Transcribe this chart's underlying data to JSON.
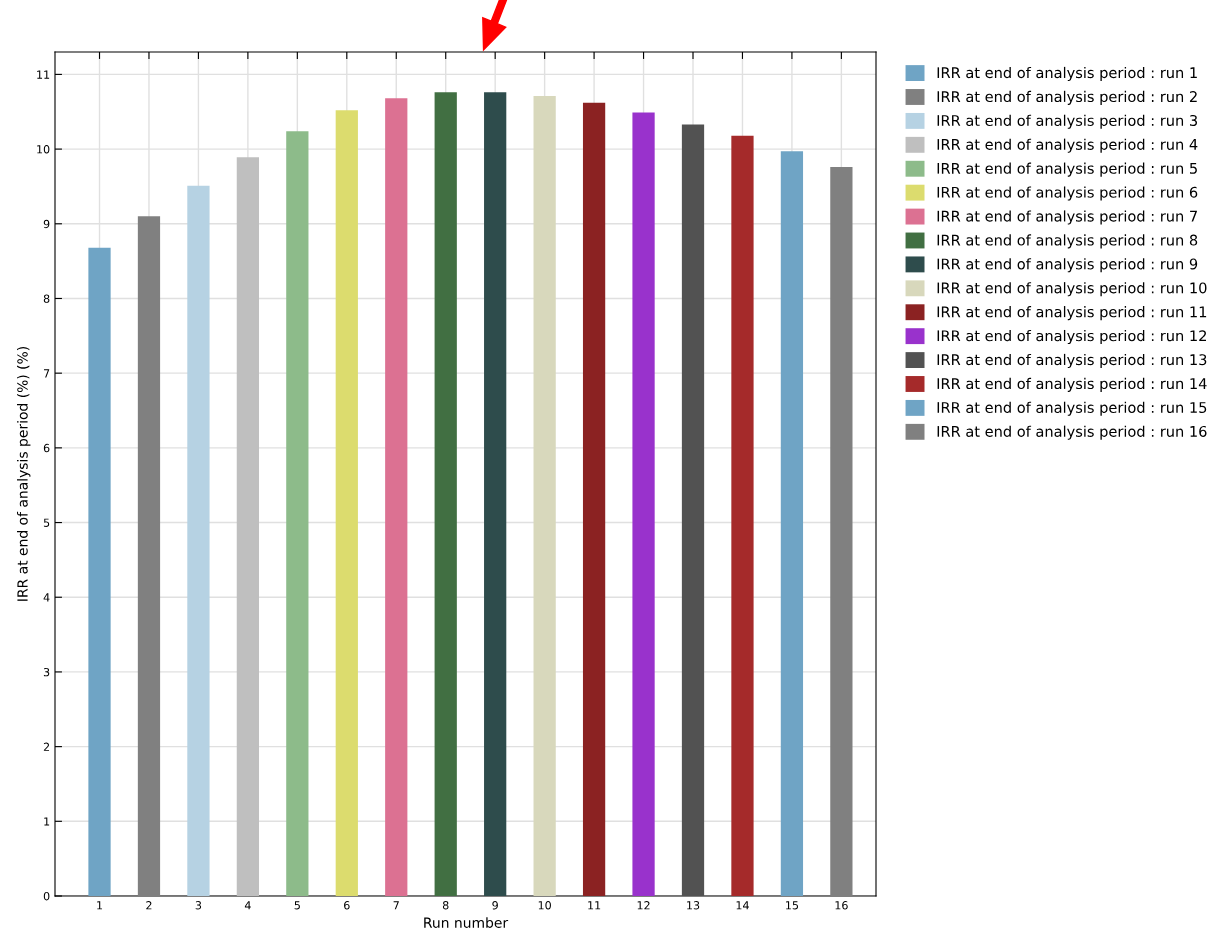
{
  "chart_data": {
    "type": "bar",
    "xlabel": "Run number",
    "ylabel": "IRR at end of analysis period (%) (%)",
    "categories": [
      "1",
      "2",
      "3",
      "4",
      "5",
      "6",
      "7",
      "8",
      "9",
      "10",
      "11",
      "12",
      "13",
      "14",
      "15",
      "16"
    ],
    "series": [
      {
        "name": "IRR at end of analysis period : run 1",
        "color": "#6fa4c5",
        "values": [
          8.68,
          null,
          null,
          null,
          null,
          null,
          null,
          null,
          null,
          null,
          null,
          null,
          null,
          null,
          null,
          null
        ]
      },
      {
        "name": "IRR at end of analysis period : run 2",
        "color": "#808080",
        "values": [
          null,
          9.1,
          null,
          null,
          null,
          null,
          null,
          null,
          null,
          null,
          null,
          null,
          null,
          null,
          null,
          null
        ]
      },
      {
        "name": "IRR at end of analysis period : run 3",
        "color": "#b6d2e3",
        "values": [
          null,
          null,
          9.51,
          null,
          null,
          null,
          null,
          null,
          null,
          null,
          null,
          null,
          null,
          null,
          null,
          null
        ]
      },
      {
        "name": "IRR at end of analysis period : run 4",
        "color": "#bfbfbf",
        "values": [
          null,
          null,
          null,
          9.89,
          null,
          null,
          null,
          null,
          null,
          null,
          null,
          null,
          null,
          null,
          null,
          null
        ]
      },
      {
        "name": "IRR at end of analysis period : run 5",
        "color": "#8dbb8a",
        "values": [
          null,
          null,
          null,
          null,
          10.24,
          null,
          null,
          null,
          null,
          null,
          null,
          null,
          null,
          null,
          null,
          null
        ]
      },
      {
        "name": "IRR at end of analysis period : run 6",
        "color": "#dcdc6e",
        "values": [
          null,
          null,
          null,
          null,
          null,
          10.52,
          null,
          null,
          null,
          null,
          null,
          null,
          null,
          null,
          null,
          null
        ]
      },
      {
        "name": "IRR at end of analysis period : run 7",
        "color": "#dc7192",
        "values": [
          null,
          null,
          null,
          null,
          null,
          null,
          10.68,
          null,
          null,
          null,
          null,
          null,
          null,
          null,
          null,
          null
        ]
      },
      {
        "name": "IRR at end of analysis period : run 8",
        "color": "#416f42",
        "values": [
          null,
          null,
          null,
          null,
          null,
          null,
          null,
          10.76,
          null,
          null,
          null,
          null,
          null,
          null,
          null,
          null
        ]
      },
      {
        "name": "IRR at end of analysis period : run 9",
        "color": "#2e4c4c",
        "values": [
          null,
          null,
          null,
          null,
          null,
          null,
          null,
          null,
          10.76,
          null,
          null,
          null,
          null,
          null,
          null,
          null
        ]
      },
      {
        "name": "IRR at end of analysis period : run 10",
        "color": "#d8d8bc",
        "values": [
          null,
          null,
          null,
          null,
          null,
          null,
          null,
          null,
          null,
          10.71,
          null,
          null,
          null,
          null,
          null,
          null
        ]
      },
      {
        "name": "IRR at end of analysis period : run 11",
        "color": "#8b2222",
        "values": [
          null,
          null,
          null,
          null,
          null,
          null,
          null,
          null,
          null,
          null,
          10.62,
          null,
          null,
          null,
          null,
          null
        ]
      },
      {
        "name": "IRR at end of analysis period : run 12",
        "color": "#9932cc",
        "values": [
          null,
          null,
          null,
          null,
          null,
          null,
          null,
          null,
          null,
          null,
          null,
          10.49,
          null,
          null,
          null,
          null
        ]
      },
      {
        "name": "IRR at end of analysis period : run 13",
        "color": "#525252",
        "values": [
          null,
          null,
          null,
          null,
          null,
          null,
          null,
          null,
          null,
          null,
          null,
          null,
          10.33,
          null,
          null,
          null
        ]
      },
      {
        "name": "IRR at end of analysis period : run 14",
        "color": "#a52a2a",
        "values": [
          null,
          null,
          null,
          null,
          null,
          null,
          null,
          null,
          null,
          null,
          null,
          null,
          null,
          10.18,
          null,
          null
        ]
      },
      {
        "name": "IRR at end of analysis period : run 15",
        "color": "#6fa4c5",
        "values": [
          null,
          null,
          null,
          null,
          null,
          null,
          null,
          null,
          null,
          null,
          null,
          null,
          null,
          null,
          9.97,
          null
        ]
      },
      {
        "name": "IRR at end of analysis period : run 16",
        "color": "#808080",
        "values": [
          null,
          null,
          null,
          null,
          null,
          null,
          null,
          null,
          null,
          null,
          null,
          null,
          null,
          null,
          null,
          9.76
        ]
      }
    ],
    "ylim": [
      0,
      11.3
    ],
    "yticks": [
      0,
      1,
      2,
      3,
      4,
      5,
      6,
      7,
      8,
      9,
      10,
      11
    ],
    "grid": true,
    "legend": "right"
  }
}
